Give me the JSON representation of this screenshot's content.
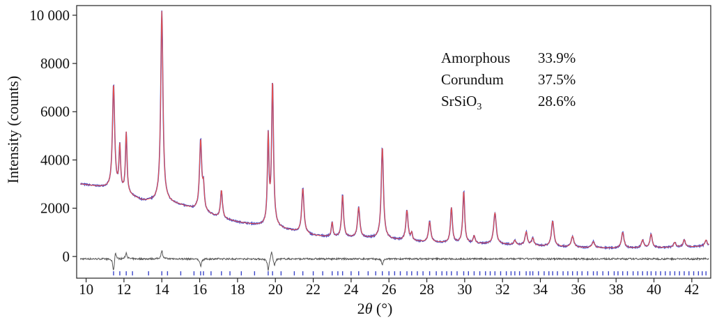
{
  "chart_data": {
    "type": "line",
    "xlabel_base": "2",
    "xlabel_theta": "θ",
    "xlabel_unit": " (°)",
    "ylabel": "Intensity (counts)",
    "xlim": [
      9.5,
      43.0
    ],
    "ylim": [
      -900,
      10400
    ],
    "x_ticks": [
      10,
      12,
      14,
      16,
      18,
      20,
      22,
      24,
      26,
      28,
      30,
      32,
      34,
      36,
      38,
      40,
      42
    ],
    "x_tick_labels": [
      "10",
      "12",
      "14",
      "16",
      "18",
      "20",
      "22",
      "24",
      "26",
      "28",
      "30",
      "32",
      "34",
      "36",
      "38",
      "40",
      "42"
    ],
    "y_ticks": [
      0,
      2000,
      4000,
      6000,
      8000,
      10000
    ],
    "y_tick_labels": [
      "0",
      "2000",
      "4000",
      "6000",
      "8000",
      "10 000"
    ],
    "grid": false,
    "series": [
      {
        "role": "observed",
        "color": "#3a45c8",
        "background": [
          [
            9.7,
            3000
          ],
          [
            11,
            2850
          ],
          [
            12,
            2620
          ],
          [
            13,
            2300
          ],
          [
            13.8,
            2280
          ],
          [
            14.3,
            2240
          ],
          [
            15,
            2120
          ],
          [
            16,
            1890
          ],
          [
            17,
            1610
          ],
          [
            18,
            1420
          ],
          [
            19,
            1300
          ],
          [
            19.5,
            1250
          ],
          [
            20.3,
            1150
          ],
          [
            21,
            1040
          ],
          [
            22,
            870
          ],
          [
            23,
            800
          ],
          [
            24,
            780
          ],
          [
            25,
            760
          ],
          [
            26,
            710
          ],
          [
            27,
            640
          ],
          [
            28,
            590
          ],
          [
            30,
            540
          ],
          [
            32,
            500
          ],
          [
            34,
            430
          ],
          [
            36,
            370
          ],
          [
            38,
            340
          ],
          [
            40,
            360
          ],
          [
            42,
            400
          ],
          [
            42.9,
            440
          ]
        ],
        "peaks": [
          [
            11.45,
            4350,
            0.07
          ],
          [
            11.78,
            1800,
            0.05
          ],
          [
            12.12,
            2500,
            0.05
          ],
          [
            14.0,
            7900,
            0.07
          ],
          [
            16.05,
            2900,
            0.07
          ],
          [
            16.2,
            900,
            0.05
          ],
          [
            17.15,
            1150,
            0.06
          ],
          [
            19.62,
            3600,
            0.05
          ],
          [
            19.85,
            5950,
            0.06
          ],
          [
            21.45,
            1850,
            0.07
          ],
          [
            23.0,
            600,
            0.05
          ],
          [
            23.55,
            1750,
            0.06
          ],
          [
            24.4,
            1250,
            0.07
          ],
          [
            25.65,
            3800,
            0.07
          ],
          [
            26.95,
            1250,
            0.07
          ],
          [
            27.2,
            300,
            0.05
          ],
          [
            28.15,
            850,
            0.07
          ],
          [
            29.3,
            1450,
            0.06
          ],
          [
            29.95,
            2150,
            0.06
          ],
          [
            30.5,
            300,
            0.06
          ],
          [
            31.6,
            1300,
            0.08
          ],
          [
            32.65,
            180,
            0.06
          ],
          [
            33.25,
            550,
            0.07
          ],
          [
            33.6,
            300,
            0.07
          ],
          [
            34.65,
            1050,
            0.08
          ],
          [
            35.7,
            450,
            0.08
          ],
          [
            36.8,
            250,
            0.08
          ],
          [
            38.35,
            650,
            0.08
          ],
          [
            39.4,
            320,
            0.07
          ],
          [
            39.85,
            560,
            0.07
          ],
          [
            41.1,
            200,
            0.07
          ],
          [
            41.6,
            300,
            0.07
          ],
          [
            42.75,
            250,
            0.07
          ]
        ]
      },
      {
        "role": "calculated",
        "color": "#e8504a"
      },
      {
        "role": "difference",
        "color": "#555555",
        "offset": -100,
        "features": [
          [
            11.45,
            -550
          ],
          [
            11.55,
            350
          ],
          [
            12.12,
            250
          ],
          [
            14.0,
            350
          ],
          [
            16.05,
            -300
          ],
          [
            19.62,
            -500
          ],
          [
            19.8,
            350
          ],
          [
            19.95,
            -300
          ],
          [
            25.65,
            -250
          ]
        ]
      },
      {
        "role": "reflection_markers",
        "color": "#3a45c8",
        "y": -700,
        "positions": [
          11.45,
          11.78,
          12.12,
          12.45,
          13.3,
          14.0,
          14.3,
          15.0,
          15.7,
          16.05,
          16.2,
          16.6,
          17.15,
          17.6,
          18.2,
          18.9,
          19.62,
          19.85,
          20.3,
          21.0,
          21.45,
          22.0,
          22.5,
          23.0,
          23.3,
          23.55,
          24.0,
          24.4,
          24.9,
          25.3,
          25.65,
          26.0,
          26.3,
          26.6,
          26.95,
          27.2,
          27.5,
          27.8,
          28.15,
          28.5,
          28.8,
          29.05,
          29.3,
          29.6,
          29.95,
          30.2,
          30.5,
          30.8,
          31.1,
          31.35,
          31.6,
          31.9,
          32.2,
          32.45,
          32.65,
          32.9,
          33.25,
          33.45,
          33.6,
          33.9,
          34.2,
          34.45,
          34.65,
          34.9,
          35.2,
          35.45,
          35.7,
          35.95,
          36.2,
          36.5,
          36.8,
          37.0,
          37.3,
          37.6,
          37.9,
          38.1,
          38.35,
          38.6,
          38.9,
          39.15,
          39.4,
          39.65,
          39.85,
          40.1,
          40.35,
          40.6,
          40.85,
          41.1,
          41.35,
          41.6,
          41.85,
          42.1,
          42.35,
          42.55,
          42.75
        ]
      }
    ],
    "annotations": [
      {
        "name": "Amorphous",
        "sub": "",
        "value": "33.9%"
      },
      {
        "name": "Corundum",
        "sub": "",
        "value": "37.5%"
      },
      {
        "name": "SrSiO",
        "sub": "3",
        "value": "28.6%"
      }
    ]
  }
}
